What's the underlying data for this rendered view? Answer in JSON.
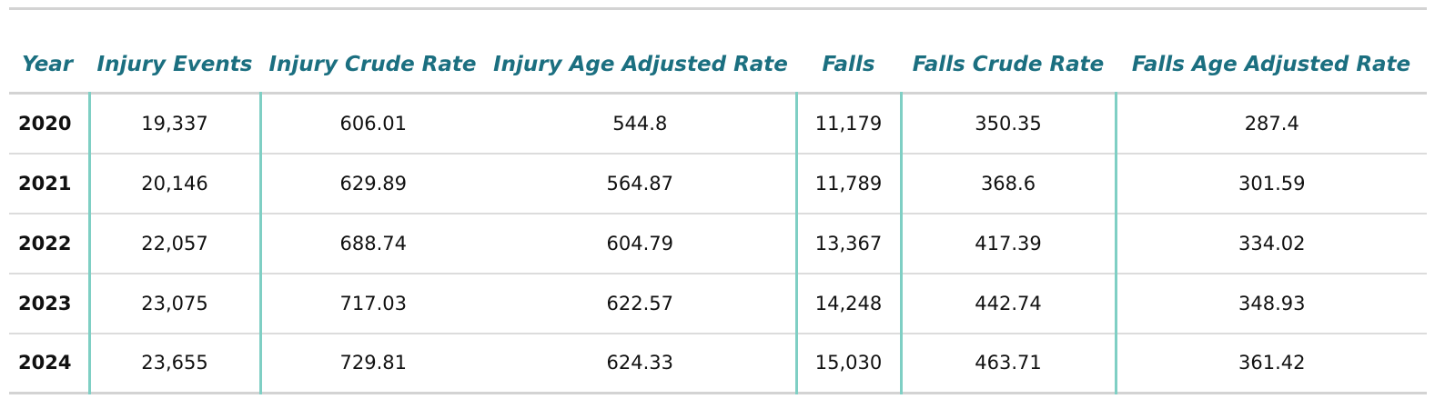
{
  "chart_data": {
    "type": "table",
    "columns": [
      "Year",
      "Injury Events",
      "Injury Crude Rate",
      "Injury Age Adjusted Rate",
      "Falls",
      "Falls Crude Rate",
      "Falls Age Adjusted Rate"
    ],
    "rows": [
      [
        "2020",
        "19,337",
        "606.01",
        "544.8",
        "11,179",
        "350.35",
        "287.4"
      ],
      [
        "2021",
        "20,146",
        "629.89",
        "564.87",
        "11,789",
        "368.6",
        "301.59"
      ],
      [
        "2022",
        "22,057",
        "688.74",
        "604.79",
        "13,367",
        "417.39",
        "334.02"
      ],
      [
        "2023",
        "23,075",
        "717.03",
        "622.57",
        "14,248",
        "442.74",
        "348.93"
      ],
      [
        "2024",
        "23,655",
        "729.81",
        "624.33",
        "15,030",
        "463.71",
        "361.42"
      ]
    ],
    "colors": {
      "header_text": "#1b6f80",
      "divider": "#7fcfc4",
      "row_rule": "#dcdcdc"
    }
  }
}
